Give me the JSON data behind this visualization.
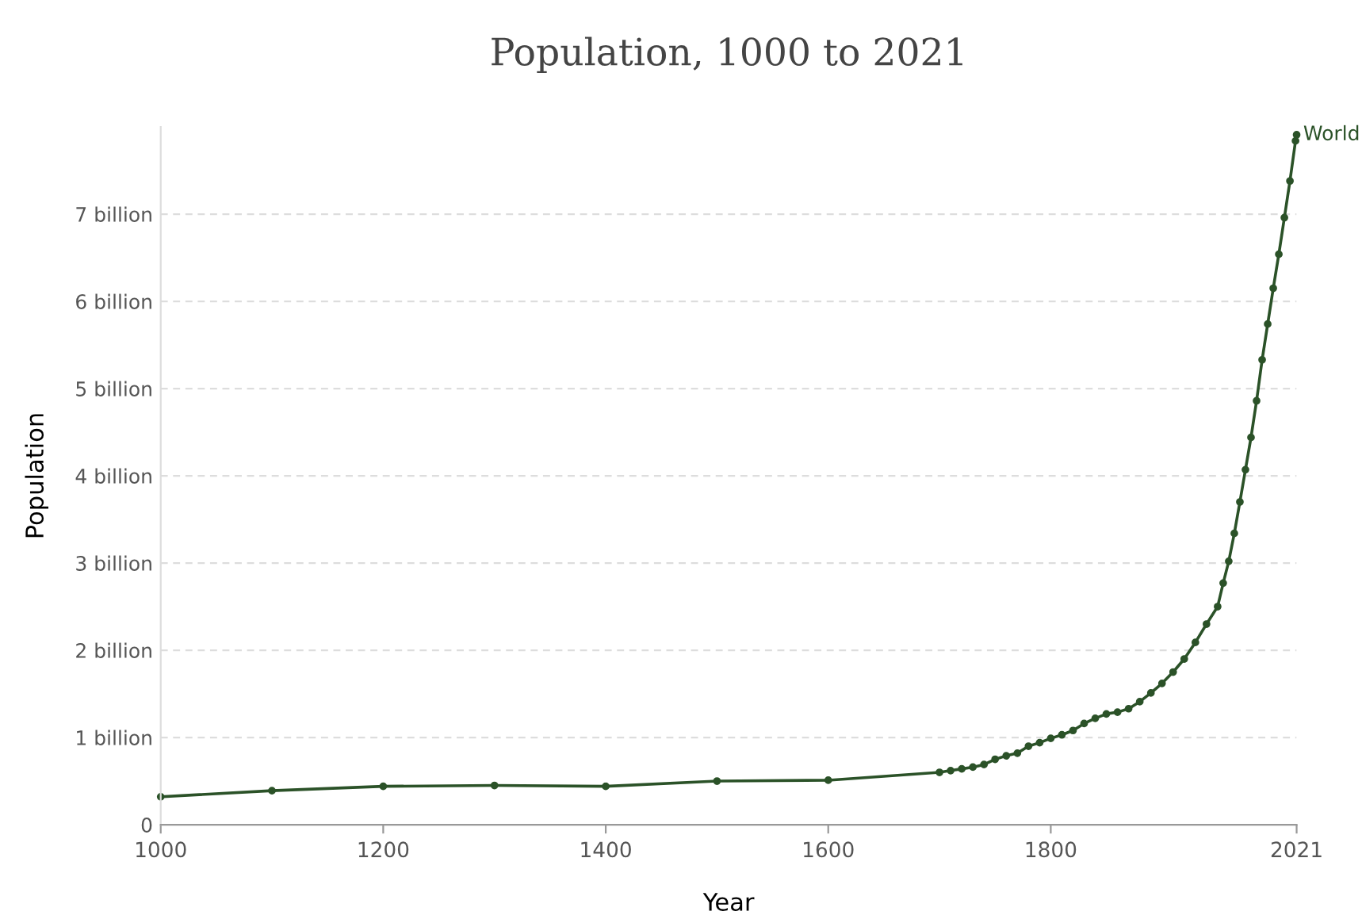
{
  "chart_data": {
    "type": "line",
    "title": "Population, 1000 to 2021",
    "xlabel": "Year",
    "ylabel": "Population",
    "series": [
      {
        "name": "World",
        "color": "#2b5228",
        "x": [
          1000,
          1100,
          1200,
          1300,
          1400,
          1500,
          1600,
          1700,
          1710,
          1720,
          1730,
          1740,
          1750,
          1760,
          1770,
          1780,
          1790,
          1800,
          1810,
          1820,
          1830,
          1840,
          1850,
          1860,
          1870,
          1880,
          1890,
          1900,
          1910,
          1920,
          1930,
          1940,
          1950,
          1955,
          1960,
          1965,
          1970,
          1975,
          1980,
          1985,
          1990,
          1995,
          2000,
          2005,
          2010,
          2015,
          2020,
          2021
        ],
        "values": [
          0.32,
          0.39,
          0.44,
          0.45,
          0.44,
          0.5,
          0.51,
          0.6,
          0.62,
          0.64,
          0.66,
          0.69,
          0.75,
          0.79,
          0.82,
          0.9,
          0.94,
          0.99,
          1.03,
          1.08,
          1.16,
          1.22,
          1.27,
          1.29,
          1.33,
          1.41,
          1.51,
          1.62,
          1.75,
          1.9,
          2.09,
          2.3,
          2.5,
          2.77,
          3.02,
          3.34,
          3.7,
          4.07,
          4.44,
          4.86,
          5.33,
          5.74,
          6.15,
          6.54,
          6.96,
          7.38,
          7.84,
          7.91
        ]
      }
    ],
    "xlim": [
      1000,
      2021
    ],
    "xticks": [
      1000,
      1200,
      1400,
      1600,
      1800,
      2021
    ],
    "ylim": [
      0,
      8
    ],
    "yticks": [
      0,
      {
        "value": 1,
        "label": "1 billion"
      },
      {
        "value": 2,
        "label": "2 billion"
      },
      {
        "value": 3,
        "label": "3 billion"
      },
      {
        "value": 4,
        "label": "4 billion"
      },
      {
        "value": 5,
        "label": "5 billion"
      },
      {
        "value": 6,
        "label": "6 billion"
      },
      {
        "value": 7,
        "label": "7 billion"
      }
    ],
    "grid": "y",
    "marker": "circle",
    "line_style": "solid",
    "legend": false
  }
}
